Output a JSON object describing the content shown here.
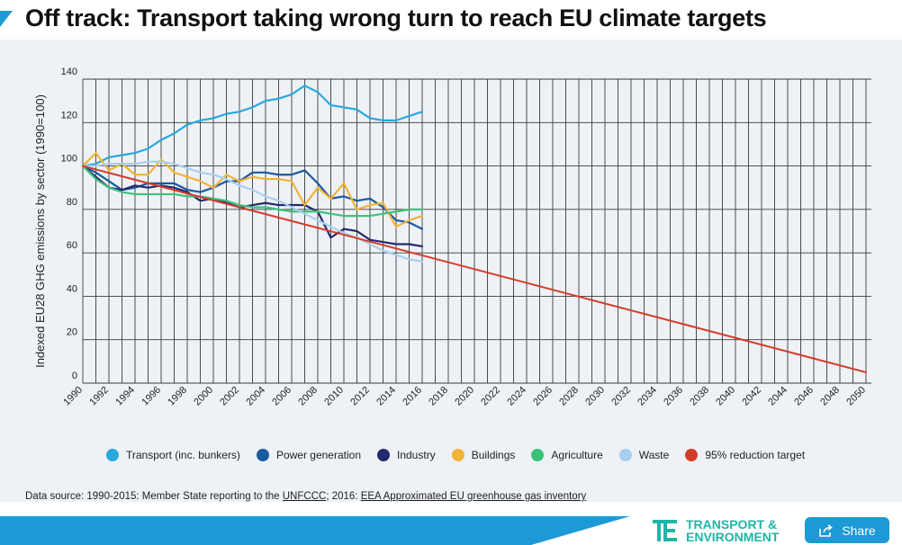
{
  "title": "Off track: Transport taking wrong turn to reach EU climate targets",
  "colors": {
    "accent": "#1b9ad6",
    "brand_teal": "#1fb5a6",
    "grid": "#3a3a3a",
    "chart_bg": "#eef2f6"
  },
  "source": {
    "prefix": "Data source:  1990-2015: Member State reporting to the ",
    "link1": "UNFCCC",
    "middle": "; 2016: ",
    "link2": "EEA Approximated EU greenhouse gas inventory"
  },
  "logo": {
    "line1": "TRANSPORT &",
    "line2": "ENVIRONMENT"
  },
  "share_label": "Share",
  "chart_data": {
    "type": "line",
    "title": "",
    "ylabel": "Indexed EU28 GHG emissions by sector (1990=100)",
    "xlabel": "",
    "ylim": [
      0,
      140
    ],
    "yticks": [
      0,
      20,
      40,
      60,
      80,
      100,
      120,
      140
    ],
    "xlim": [
      1990,
      2050
    ],
    "xticks": [
      "1990",
      "1992",
      "1994",
      "1996",
      "1998",
      "2000",
      "2002",
      "2004",
      "2006",
      "2008",
      "2010",
      "2012",
      "2014",
      "2016",
      "2018",
      "2020",
      "2022",
      "2024",
      "2026",
      "2028",
      "2030",
      "2032",
      "2034",
      "2036",
      "2038",
      "2040",
      "2042",
      "2044",
      "2046",
      "2048",
      "2050"
    ],
    "grid": "vertical yearly and horizontal every 20",
    "legend_placement": "bottom",
    "series": [
      {
        "name": "Transport (inc. bunkers)",
        "color": "#29a8e0",
        "x": [
          1990,
          1991,
          1992,
          1993,
          1994,
          1995,
          1996,
          1997,
          1998,
          1999,
          2000,
          2001,
          2002,
          2003,
          2004,
          2005,
          2006,
          2007,
          2008,
          2009,
          2010,
          2011,
          2012,
          2013,
          2014,
          2015,
          2016
        ],
        "y": [
          100,
          101,
          104,
          105,
          106,
          108,
          112,
          115,
          119,
          121,
          122,
          124,
          125,
          127,
          130,
          131,
          133,
          137,
          134,
          128,
          127,
          126,
          122,
          121,
          121,
          123,
          125
        ]
      },
      {
        "name": "Power generation",
        "color": "#1a5a9e",
        "x": [
          1990,
          1991,
          1992,
          1993,
          1994,
          1995,
          1996,
          1997,
          1998,
          1999,
          2000,
          2001,
          2002,
          2003,
          2004,
          2005,
          2006,
          2007,
          2008,
          2009,
          2010,
          2011,
          2012,
          2013,
          2014,
          2015,
          2016
        ],
        "y": [
          100,
          97,
          93,
          89,
          90,
          92,
          92,
          92,
          89,
          88,
          90,
          93,
          93,
          97,
          97,
          96,
          96,
          98,
          92,
          85,
          86,
          84,
          85,
          81,
          75,
          74,
          71
        ]
      },
      {
        "name": "Industry",
        "color": "#252a6e",
        "x": [
          1990,
          1991,
          1992,
          1993,
          1994,
          1995,
          1996,
          1997,
          1998,
          1999,
          2000,
          2001,
          2002,
          2003,
          2004,
          2005,
          2006,
          2007,
          2008,
          2009,
          2010,
          2011,
          2012,
          2013,
          2014,
          2015,
          2016
        ],
        "y": [
          100,
          95,
          90,
          89,
          91,
          90,
          91,
          90,
          88,
          84,
          85,
          83,
          81,
          82,
          83,
          82,
          82,
          82,
          79,
          67,
          71,
          70,
          66,
          65,
          64,
          64,
          63
        ]
      },
      {
        "name": "Buildings",
        "color": "#f2b337",
        "x": [
          1990,
          1991,
          1992,
          1993,
          1994,
          1995,
          1996,
          1997,
          1998,
          1999,
          2000,
          2001,
          2002,
          2003,
          2004,
          2005,
          2006,
          2007,
          2008,
          2009,
          2010,
          2011,
          2012,
          2013,
          2014,
          2015,
          2016
        ],
        "y": [
          100,
          106,
          98,
          101,
          96,
          96,
          103,
          97,
          95,
          93,
          90,
          96,
          93,
          95,
          94,
          94,
          93,
          82,
          90,
          85,
          92,
          80,
          82,
          83,
          72,
          75,
          77
        ]
      },
      {
        "name": "Agriculture",
        "color": "#3bc27a",
        "x": [
          1990,
          1991,
          1992,
          1993,
          1994,
          1995,
          1996,
          1997,
          1998,
          1999,
          2000,
          2001,
          2002,
          2003,
          2004,
          2005,
          2006,
          2007,
          2008,
          2009,
          2010,
          2011,
          2012,
          2013,
          2014,
          2015,
          2016
        ],
        "y": [
          100,
          94,
          90,
          88,
          87,
          87,
          87,
          87,
          86,
          86,
          85,
          84,
          82,
          81,
          81,
          80,
          79,
          79,
          79,
          78,
          77,
          77,
          77,
          78,
          79,
          80,
          80
        ]
      },
      {
        "name": "Waste",
        "color": "#a8cff0",
        "x": [
          1990,
          1991,
          1992,
          1993,
          1994,
          1995,
          1996,
          1997,
          1998,
          1999,
          2000,
          2001,
          2002,
          2003,
          2004,
          2005,
          2006,
          2007,
          2008,
          2009,
          2010,
          2011,
          2012,
          2013,
          2014,
          2015,
          2016
        ],
        "y": [
          100,
          100,
          101,
          101,
          101,
          102,
          102,
          101,
          99,
          97,
          96,
          94,
          91,
          89,
          86,
          84,
          81,
          78,
          75,
          72,
          69,
          67,
          64,
          61,
          59,
          57,
          56
        ]
      },
      {
        "name": "95% reduction target",
        "color": "#d63b2a",
        "x": [
          1990,
          2050
        ],
        "y": [
          100,
          5
        ]
      }
    ]
  }
}
